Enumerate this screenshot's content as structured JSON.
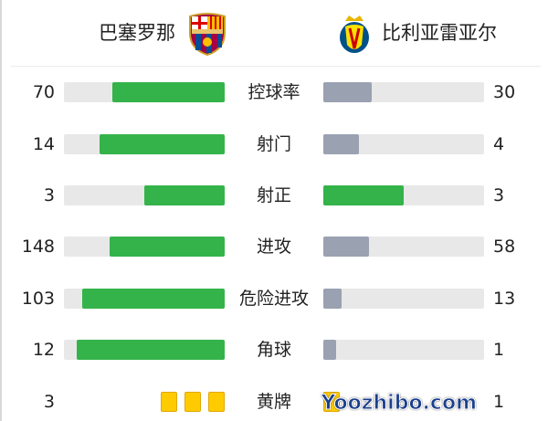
{
  "home": {
    "name": "巴塞罗那",
    "crest": "fc-barcelona-crest"
  },
  "away": {
    "name": "比利亚雷亚尔",
    "crest": "villarreal-crest"
  },
  "colors": {
    "home_bar": "#34b34a",
    "away_bar": "#9aa1b0",
    "away_lead_bar": "#34b34a",
    "track": "#e8e8e8",
    "yellow_card": "#fecb00"
  },
  "stats": [
    {
      "label": "控球率",
      "home": 70,
      "away": 30
    },
    {
      "label": "射门",
      "home": 14,
      "away": 4
    },
    {
      "label": "射正",
      "home": 3,
      "away": 3
    },
    {
      "label": "进攻",
      "home": 148,
      "away": 58
    },
    {
      "label": "危险进攻",
      "home": 103,
      "away": 13
    },
    {
      "label": "角球",
      "home": 12,
      "away": 1
    }
  ],
  "cards": {
    "label": "黄牌",
    "home": 3,
    "away": 1
  },
  "watermark": "Yoozhibo.com"
}
